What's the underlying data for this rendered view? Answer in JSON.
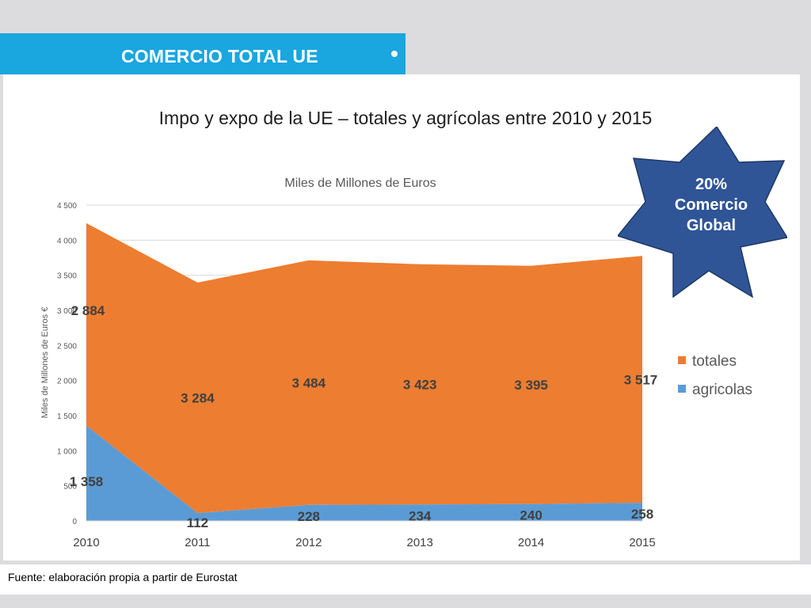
{
  "header": {
    "title": "COMERCIO TOTAL UE"
  },
  "main_title": "Impo y expo de la UE –  totales y agrícolas entre 2010 y 2015",
  "badge": {
    "line1": "20%",
    "line2": "Comercio",
    "line3": "Global",
    "color": "#2f5597"
  },
  "source": "Fuente: elaboración propia a partir de Eurostat",
  "chart_data": {
    "type": "area",
    "stacked": true,
    "title": "Miles de Millones de Euros",
    "xlabel": "",
    "ylabel": "Miles de Millones de Euros €",
    "categories": [
      "2010",
      "2011",
      "2012",
      "2013",
      "2014",
      "2015"
    ],
    "ylim": [
      0,
      4500
    ],
    "yticks": [
      0,
      500,
      1000,
      1500,
      2000,
      2500,
      3000,
      3500,
      4000,
      4500
    ],
    "ytick_labels": [
      "0",
      "500",
      "1 000",
      "1 500",
      "2 000",
      "2 500",
      "3 000",
      "3 500",
      "4 000",
      "4 500"
    ],
    "grid": true,
    "legend_position": "right",
    "series": [
      {
        "name": "totales",
        "color": "#ed7d31",
        "values": [
          2884,
          3284,
          3484,
          3423,
          3395,
          3517
        ],
        "labels": [
          "2 884",
          "3 284",
          "3 484",
          "3 423",
          "3 395",
          "3 517"
        ]
      },
      {
        "name": "agricolas",
        "color": "#5b9bd5",
        "values": [
          1358,
          112,
          228,
          234,
          240,
          258
        ],
        "labels": [
          "1 358",
          "112",
          "228",
          "234",
          "240",
          "258"
        ]
      }
    ]
  }
}
